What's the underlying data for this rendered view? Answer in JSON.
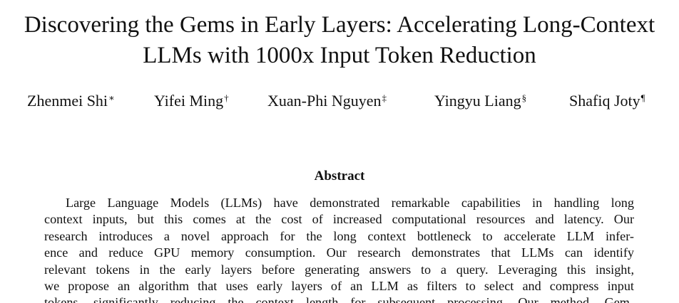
{
  "paper": {
    "title_lines": [
      "Discovering the Gems in Early Layers: Accelerating Long-Context",
      "LLMs with 1000x Input Token Reduction"
    ],
    "authors": [
      {
        "name": "Zhenmei Shi",
        "mark": "∗"
      },
      {
        "name": "Yifei Ming",
        "mark": "†"
      },
      {
        "name": "Xuan-Phi Nguyen",
        "mark": "‡"
      },
      {
        "name": "Yingyu Liang",
        "mark": "§"
      },
      {
        "name": "Shafiq Joty",
        "mark": "¶"
      }
    ],
    "abstract_heading": "Abstract",
    "abstract_lines": [
      "Large Language Models (LLMs) have demonstrated remarkable capabilities in handling long",
      "context inputs, but this comes at the cost of increased computational resources and latency. Our",
      "research introduces a novel approach for the long context bottleneck to accelerate LLM infer-",
      "ence and reduce GPU memory consumption. Our research demonstrates that LLMs can identify",
      "relevant tokens in the early layers before generating answers to a query. Leveraging this insight,",
      "we propose an algorithm that uses early layers of an LLM as filters to select and compress input",
      "tokens, significantly reducing the context length for subsequent processing. Our method, Gem-"
    ]
  }
}
